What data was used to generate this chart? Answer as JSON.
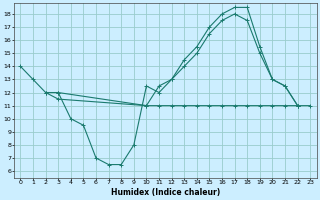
{
  "title": "",
  "xlabel": "Humidex (Indice chaleur)",
  "background_color": "#cceeff",
  "grid_color": "#99cccc",
  "line_color": "#1a7a6e",
  "xlim": [
    -0.5,
    23.5
  ],
  "ylim": [
    5.5,
    18.8
  ],
  "yticks": [
    6,
    7,
    8,
    9,
    10,
    11,
    12,
    13,
    14,
    15,
    16,
    17,
    18
  ],
  "xticks": [
    0,
    1,
    2,
    3,
    4,
    5,
    6,
    7,
    8,
    9,
    10,
    11,
    12,
    13,
    14,
    15,
    16,
    17,
    18,
    19,
    20,
    21,
    22,
    23
  ],
  "series": [
    {
      "x": [
        0,
        1,
        2,
        3,
        4,
        5,
        6,
        7,
        8,
        9,
        10,
        11,
        12,
        13,
        14,
        15,
        16,
        17,
        18,
        19,
        20,
        21,
        22
      ],
      "y": [
        14.0,
        13.0,
        12.0,
        12.0,
        10.0,
        9.5,
        7.0,
        6.5,
        6.5,
        8.0,
        12.5,
        12.0,
        13.0,
        14.5,
        15.5,
        17.0,
        18.0,
        18.5,
        18.5,
        15.5,
        13.0,
        12.5,
        11.0
      ]
    },
    {
      "x": [
        2,
        3,
        10,
        11,
        12,
        13,
        14,
        15,
        16,
        17,
        18,
        19,
        20,
        21,
        22,
        23
      ],
      "y": [
        12.0,
        11.5,
        11.0,
        11.0,
        11.0,
        11.0,
        11.0,
        11.0,
        11.0,
        11.0,
        11.0,
        11.0,
        11.0,
        11.0,
        11.0,
        11.0
      ]
    },
    {
      "x": [
        3,
        10,
        11,
        12,
        13,
        14,
        15,
        16,
        17,
        18,
        19,
        20,
        21,
        22
      ],
      "y": [
        12.0,
        11.0,
        12.5,
        13.0,
        14.0,
        15.0,
        16.5,
        17.5,
        18.0,
        17.5,
        15.0,
        13.0,
        12.5,
        11.0
      ]
    }
  ]
}
